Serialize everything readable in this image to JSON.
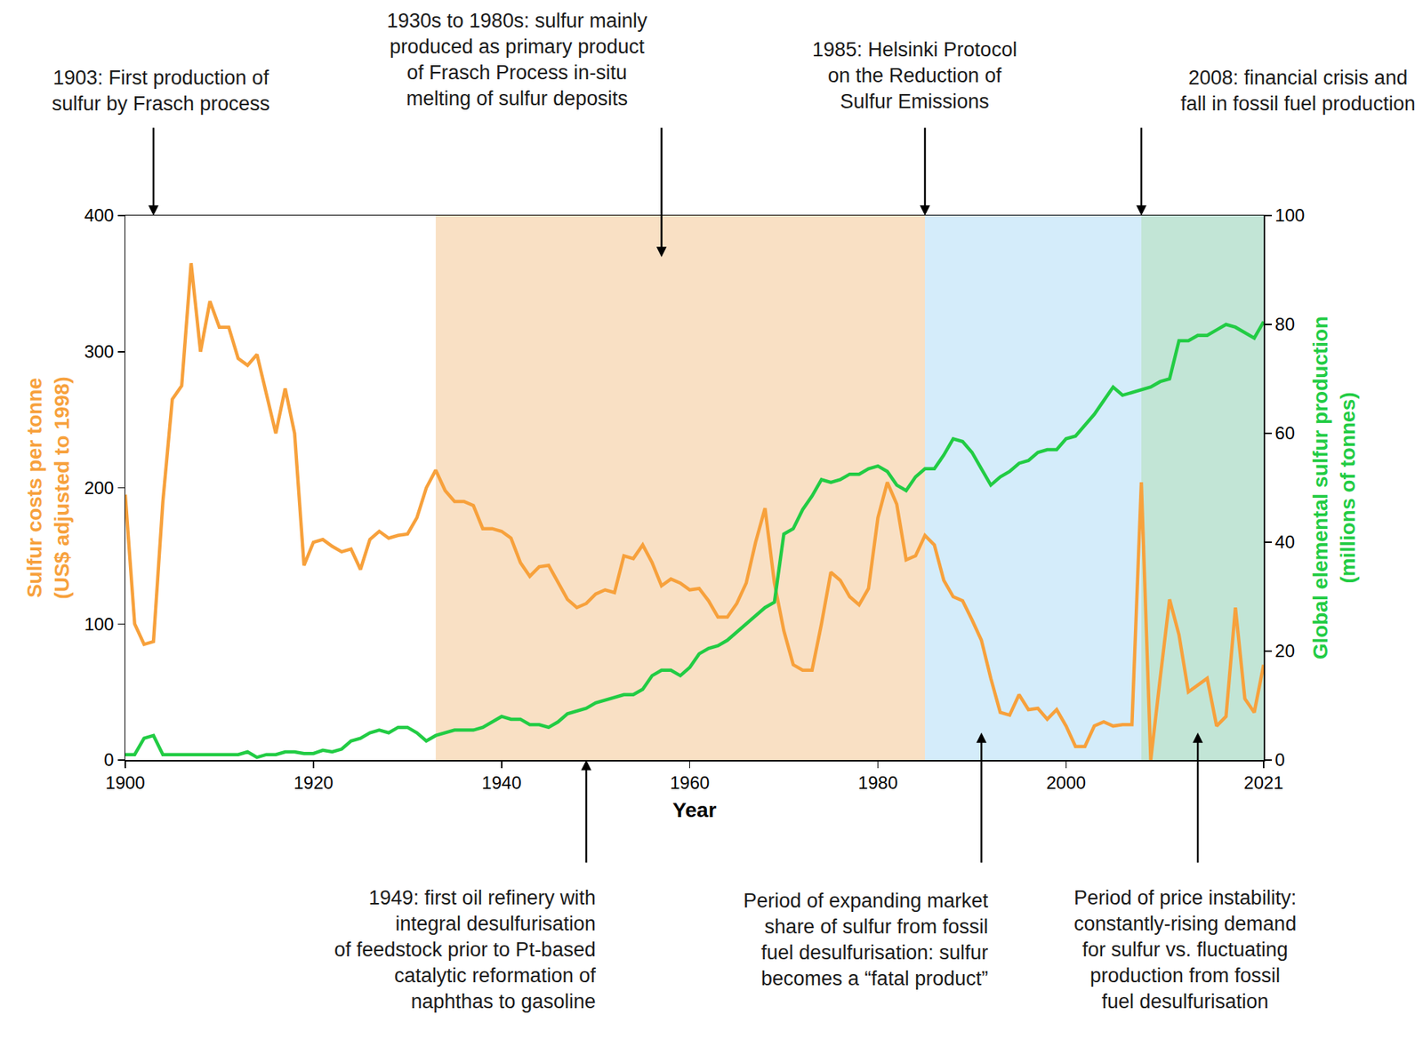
{
  "chart_data": {
    "type": "line",
    "grid": false,
    "x_label": "Year",
    "y_label": "Sulfur costs per tonne\n(US$ adjusted to 1998)",
    "y2_label": "Global elemental sulfur production\n(millions of tonnes)",
    "x": [
      1900,
      1901,
      1902,
      1903,
      1904,
      1905,
      1906,
      1907,
      1908,
      1909,
      1910,
      1911,
      1912,
      1913,
      1914,
      1915,
      1916,
      1917,
      1918,
      1919,
      1920,
      1921,
      1922,
      1923,
      1924,
      1925,
      1926,
      1927,
      1928,
      1929,
      1930,
      1931,
      1932,
      1933,
      1934,
      1935,
      1936,
      1937,
      1938,
      1939,
      1940,
      1941,
      1942,
      1943,
      1944,
      1945,
      1946,
      1947,
      1948,
      1949,
      1950,
      1951,
      1952,
      1953,
      1954,
      1955,
      1956,
      1957,
      1958,
      1959,
      1960,
      1961,
      1962,
      1963,
      1964,
      1965,
      1966,
      1967,
      1968,
      1969,
      1970,
      1971,
      1972,
      1973,
      1974,
      1975,
      1976,
      1977,
      1978,
      1979,
      1980,
      1981,
      1982,
      1983,
      1984,
      1985,
      1986,
      1987,
      1988,
      1989,
      1990,
      1991,
      1992,
      1993,
      1994,
      1995,
      1996,
      1997,
      1998,
      1999,
      2000,
      2001,
      2002,
      2003,
      2004,
      2005,
      2006,
      2007,
      2008,
      2009,
      2010,
      2011,
      2012,
      2013,
      2014,
      2015,
      2016,
      2017,
      2018,
      2019,
      2020,
      2021
    ],
    "xlim": [
      1900,
      2021
    ],
    "xticks": [
      1900,
      1920,
      1940,
      1960,
      1980,
      2000,
      2021
    ],
    "ylim": [
      0,
      400
    ],
    "yticks": [
      0,
      100,
      200,
      300,
      400
    ],
    "y2lim": [
      0,
      100
    ],
    "y2ticks": [
      0,
      20,
      40,
      60,
      80,
      100
    ],
    "series": [
      {
        "color": "#f7a13c",
        "axis": "y",
        "values": [
          195,
          100,
          85,
          87,
          190,
          265,
          275,
          365,
          300,
          337,
          318,
          318,
          295,
          290,
          298,
          270,
          240,
          273,
          240,
          143,
          160,
          162,
          157,
          153,
          155,
          140,
          162,
          168,
          163,
          165,
          166,
          178,
          200,
          213,
          198,
          190,
          190,
          187,
          170,
          170,
          168,
          163,
          145,
          135,
          142,
          143,
          130,
          118,
          112,
          115,
          122,
          125,
          123,
          150,
          148,
          158,
          145,
          128,
          133,
          130,
          125,
          126,
          117,
          105,
          105,
          115,
          130,
          160,
          185,
          130,
          95,
          70,
          66,
          66,
          100,
          138,
          132,
          120,
          114,
          126,
          178,
          204,
          188,
          147,
          150,
          165,
          158,
          132,
          120,
          117,
          103,
          88,
          60,
          35,
          33,
          48,
          37,
          38,
          30,
          37,
          25,
          10,
          10,
          25,
          28,
          25,
          26,
          26,
          204,
          0,
          60,
          118,
          92,
          50,
          55,
          60,
          25,
          32,
          112,
          45,
          35,
          70
        ]
      },
      {
        "color": "#22cc44",
        "axis": "y2",
        "values": [
          1,
          1,
          4,
          4.5,
          1,
          1,
          1,
          1,
          1,
          1,
          1,
          1,
          1,
          1.5,
          0.5,
          1,
          1,
          1.5,
          1.5,
          1.2,
          1.2,
          1.8,
          1.5,
          2,
          3.5,
          4,
          5,
          5.5,
          5,
          6,
          6,
          5,
          3.5,
          4.5,
          5,
          5.5,
          5.5,
          5.5,
          6,
          7,
          8,
          7.5,
          7.5,
          6.5,
          6.5,
          6,
          7,
          8.5,
          9,
          9.5,
          10.5,
          11,
          11.5,
          12,
          12,
          13,
          15.5,
          16.5,
          16.5,
          15.5,
          17,
          19.5,
          20.5,
          21,
          22,
          23.5,
          25,
          26.5,
          28,
          29,
          41.5,
          42.5,
          46,
          48.5,
          51.5,
          51,
          51.5,
          52.5,
          52.5,
          53.5,
          54,
          53,
          50.5,
          49.5,
          52,
          53.5,
          53.5,
          56,
          59,
          58.5,
          56.5,
          53.5,
          50.5,
          52,
          53,
          54.5,
          55,
          56.5,
          57,
          57,
          59,
          59.5,
          61.5,
          63.5,
          66,
          68.5,
          67,
          67.5,
          68,
          68.5,
          69.5,
          70,
          77,
          77,
          78,
          78,
          79,
          80,
          79.5,
          78.5,
          77.5,
          80.5
        ]
      }
    ],
    "periods": [
      {
        "start": 1933,
        "end": 1985,
        "color": "#f9e0c4"
      },
      {
        "start": 1985,
        "end": 2008,
        "color": "#d4ecfa"
      },
      {
        "start": 2008,
        "end": 2021,
        "color": "#c2e5d6"
      }
    ],
    "annotations": [
      {
        "text": "1903: First production of\nsulfur by Frasch process",
        "x": 1903
      },
      {
        "text": "1930s to 1980s: sulfur mainly\nproduced as primary product\nof Frasch Process in-situ\nmelting of sulfur deposits",
        "x": 1957
      },
      {
        "text": "1985: Helsinki Protocol\non the Reduction of\nSulfur Emissions",
        "x": 1985
      },
      {
        "text": "2008: financial crisis and\nfall in fossil fuel production",
        "x": 2008
      },
      {
        "text": "1949: first oil refinery with\nintegral desulfurisation\nof feedstock prior to Pt-based\ncatalytic reformation of\nnaphthas to gasoline",
        "x": 1949
      },
      {
        "text": "Period of expanding market\nshare of sulfur from fossil\nfuel desulfurisation: sulfur\nbecomes a “fatal product”",
        "x": 1991
      },
      {
        "text": "Period of price instability:\nconstantly-rising demand\nfor sulfur vs. fluctuating\nproduction from fossil\nfuel desulfurisation",
        "x": 2014
      }
    ]
  }
}
